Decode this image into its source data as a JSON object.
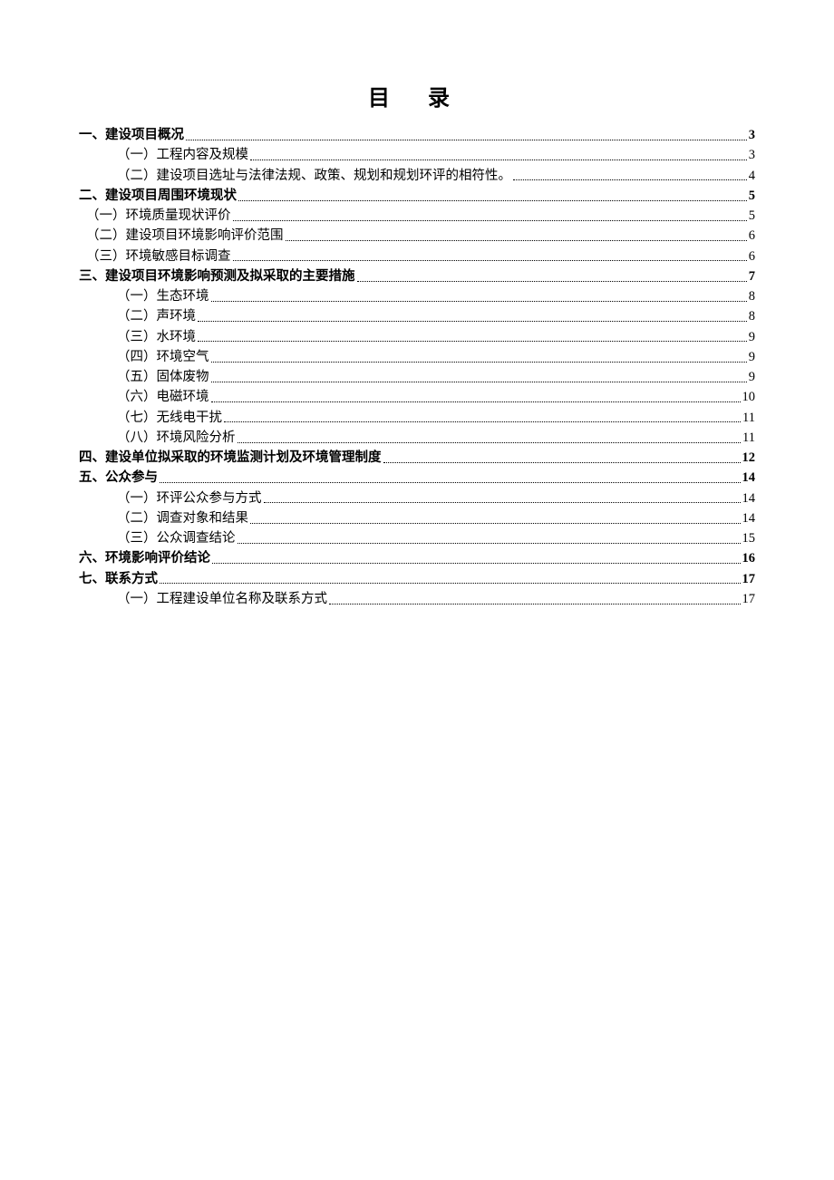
{
  "title": "目 录",
  "entries": [
    {
      "level": "level1",
      "label": "一、建设项目概况",
      "page": "3"
    },
    {
      "level": "level2",
      "label": "（一）工程内容及规模",
      "page": "3"
    },
    {
      "level": "level2",
      "label": "（二）建设项目选址与法律法规、政策、规划和规划环评的相符性。",
      "page": "4"
    },
    {
      "level": "level1",
      "label": "二、建设项目周围环境现状",
      "page": "5"
    },
    {
      "level": "level2-outdent",
      "label": "（一）环境质量现状评价",
      "page": "5"
    },
    {
      "level": "level2-outdent",
      "label": "（二）建设项目环境影响评价范围",
      "page": "6"
    },
    {
      "level": "level2-outdent",
      "label": "（三）环境敏感目标调查",
      "page": "6"
    },
    {
      "level": "level1",
      "label": "三、建设项目环境影响预测及拟采取的主要措施",
      "page": "7"
    },
    {
      "level": "level2",
      "label": "（一）生态环境",
      "page": "8"
    },
    {
      "level": "level2",
      "label": "（二）声环境",
      "page": "8"
    },
    {
      "level": "level2",
      "label": "（三）水环境",
      "page": "9"
    },
    {
      "level": "level2",
      "label": "（四）环境空气",
      "page": "9"
    },
    {
      "level": "level2",
      "label": "（五）固体废物",
      "page": "9"
    },
    {
      "level": "level2",
      "label": "（六）电磁环境",
      "page": "10"
    },
    {
      "level": "level2",
      "label": "（七）无线电干扰",
      "page": "11"
    },
    {
      "level": "level2",
      "label": "（八）环境风险分析",
      "page": "11"
    },
    {
      "level": "level1",
      "label": "四、建设单位拟采取的环境监测计划及环境管理制度",
      "page": "12"
    },
    {
      "level": "level1",
      "label": "五、公众参与",
      "page": "14"
    },
    {
      "level": "level2",
      "label": "（一）环评公众参与方式",
      "page": "14"
    },
    {
      "level": "level2",
      "label": "（二）调查对象和结果",
      "page": "14"
    },
    {
      "level": "level2",
      "label": "（三）公众调查结论",
      "page": "15"
    },
    {
      "level": "level1",
      "label": "六、环境影响评价结论",
      "page": "16"
    },
    {
      "level": "level1",
      "label": "七、联系方式",
      "page": "17"
    },
    {
      "level": "level2",
      "label": "（一）工程建设单位名称及联系方式",
      "page": "17"
    }
  ]
}
